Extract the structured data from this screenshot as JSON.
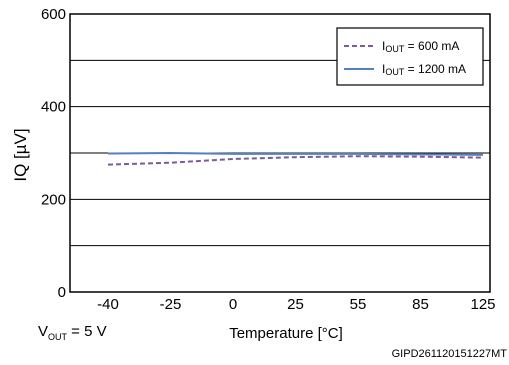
{
  "chart_data": {
    "type": "line",
    "xlabel": "Temperature  [°C]",
    "ylabel": "IQ  [µV]",
    "categories": [
      "-40",
      "-25",
      "0",
      "25",
      "55",
      "85",
      "125"
    ],
    "ylim": [
      0,
      600
    ],
    "yticks": [
      "0",
      "200",
      "400",
      "600"
    ],
    "grid": true,
    "legend_position": "top-right",
    "series": [
      {
        "name_main": "I",
        "name_sub": "OUT",
        "name_rest": "  = 600 mA",
        "style": "dashed",
        "color": "#7b5b9b",
        "x": [
          -40,
          -25,
          0,
          25,
          55,
          85,
          125
        ],
        "values": [
          275,
          279,
          287,
          291,
          293,
          292,
          290
        ]
      },
      {
        "name_main": "I",
        "name_sub": "OUT",
        "name_rest": "  = 1200 mA",
        "style": "solid",
        "color": "#5580c0",
        "x": [
          -40,
          -25,
          0,
          25,
          55,
          85,
          125
        ],
        "values": [
          299,
          300,
          298,
          298,
          298,
          297,
          296
        ]
      }
    ],
    "condition_main": "V",
    "condition_sub": "OUT",
    "condition_rest": " = 5 V"
  },
  "code": "GIPD261120151227MT"
}
